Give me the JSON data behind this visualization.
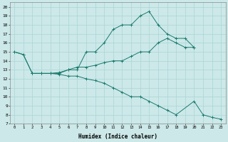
{
  "xlabel": "Humidex (Indice chaleur)",
  "bg_color": "#cce8e8",
  "line_color": "#1a7a6e",
  "grid_color": "#aad4d4",
  "xlim": [
    -0.5,
    23.5
  ],
  "ylim": [
    7,
    20.5
  ],
  "xticks": [
    0,
    1,
    2,
    3,
    4,
    5,
    6,
    7,
    8,
    9,
    10,
    11,
    12,
    13,
    14,
    15,
    16,
    17,
    18,
    19,
    20,
    21,
    22,
    23
  ],
  "yticks": [
    7,
    8,
    9,
    10,
    11,
    12,
    13,
    14,
    15,
    16,
    17,
    18,
    19,
    20
  ],
  "series": [
    {
      "x": [
        0,
        1,
        2,
        3,
        4,
        5,
        6,
        7,
        8,
        9,
        10,
        11,
        12,
        13,
        14,
        15,
        16,
        17,
        18,
        19,
        20
      ],
      "y": [
        15.0,
        14.7,
        12.6,
        12.6,
        12.6,
        12.6,
        13.0,
        13.0,
        15.0,
        15.0,
        16.0,
        17.5,
        18.0,
        18.0,
        19.0,
        19.5,
        18.0,
        17.0,
        16.5,
        16.5,
        15.5
      ]
    },
    {
      "x": [
        0,
        1,
        2,
        3,
        4,
        5,
        6,
        7,
        8,
        9,
        10,
        11,
        12,
        13,
        14,
        15,
        16,
        17,
        18,
        19,
        20
      ],
      "y": [
        15.0,
        14.7,
        12.6,
        12.6,
        12.6,
        12.7,
        13.0,
        13.3,
        13.3,
        13.5,
        13.8,
        14.0,
        14.0,
        14.5,
        15.0,
        15.0,
        16.0,
        16.5,
        16.0,
        15.5,
        15.5
      ]
    },
    {
      "x": [
        2,
        3,
        4,
        5,
        6,
        7,
        8,
        9,
        10,
        11,
        12,
        13,
        14,
        15,
        16,
        17,
        18,
        20,
        21,
        22,
        23
      ],
      "y": [
        12.6,
        12.6,
        12.6,
        12.5,
        12.3,
        12.3,
        12.0,
        11.8,
        11.5,
        11.0,
        10.5,
        10.0,
        10.0,
        9.5,
        9.0,
        8.5,
        8.0,
        9.5,
        8.0,
        7.7,
        7.5
      ]
    }
  ]
}
